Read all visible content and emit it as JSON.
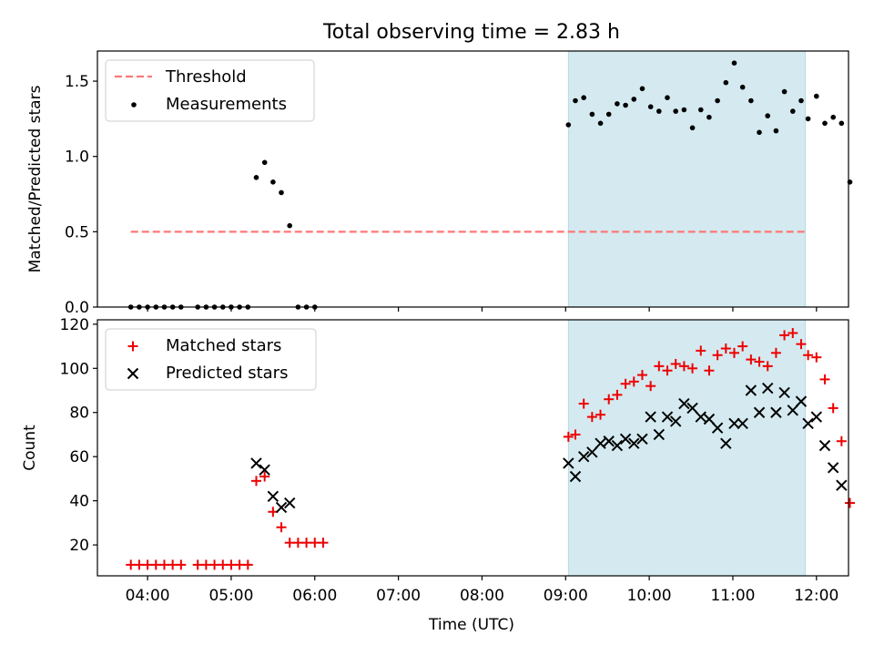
{
  "title": "Total observing time = 2.83 h",
  "colors": {
    "shade": "#d4eaf0",
    "shade_edge": "#b5d9e4",
    "threshold": "#ff7777",
    "measurements": "#000000",
    "matched": "#ee0000",
    "predicted": "#000000"
  },
  "chart_data": [
    {
      "type": "scatter",
      "ylabel": "Matched/Predicted stars",
      "ylim": [
        0,
        1.7
      ],
      "yticks": [
        0.0,
        0.5,
        1.0,
        1.5
      ],
      "ytick_labels": [
        "0.0",
        "0.5",
        "1.0",
        "1.5"
      ],
      "legend": "top-left",
      "shaded_span": [
        "09:02",
        "11:52"
      ],
      "threshold": {
        "name": "Threshold",
        "value": 0.5,
        "x_range": [
          "03:48",
          "11:52"
        ]
      },
      "series": [
        {
          "name": "Measurements",
          "points": [
            [
              "03:48",
              0
            ],
            [
              "03:54",
              0
            ],
            [
              "04:00",
              0
            ],
            [
              "04:06",
              0
            ],
            [
              "04:12",
              0
            ],
            [
              "04:18",
              0
            ],
            [
              "04:24",
              0
            ],
            [
              "04:36",
              0
            ],
            [
              "04:42",
              0
            ],
            [
              "04:48",
              0
            ],
            [
              "04:54",
              0
            ],
            [
              "05:00",
              0
            ],
            [
              "05:06",
              0
            ],
            [
              "05:12",
              0
            ],
            [
              "05:18",
              0.86
            ],
            [
              "05:24",
              0.96
            ],
            [
              "05:30",
              0.83
            ],
            [
              "05:36",
              0.76
            ],
            [
              "05:42",
              0.54
            ],
            [
              "05:48",
              0
            ],
            [
              "05:54",
              0
            ],
            [
              "06:00",
              0
            ],
            [
              "09:02",
              1.21
            ],
            [
              "09:07",
              1.37
            ],
            [
              "09:13",
              1.39
            ],
            [
              "09:19",
              1.28
            ],
            [
              "09:25",
              1.22
            ],
            [
              "09:31",
              1.28
            ],
            [
              "09:37",
              1.35
            ],
            [
              "09:43",
              1.34
            ],
            [
              "09:49",
              1.38
            ],
            [
              "09:55",
              1.45
            ],
            [
              "10:01",
              1.33
            ],
            [
              "10:07",
              1.3
            ],
            [
              "10:13",
              1.39
            ],
            [
              "10:19",
              1.3
            ],
            [
              "10:25",
              1.31
            ],
            [
              "10:31",
              1.19
            ],
            [
              "10:37",
              1.31
            ],
            [
              "10:43",
              1.26
            ],
            [
              "10:49",
              1.37
            ],
            [
              "10:55",
              1.49
            ],
            [
              "11:01",
              1.62
            ],
            [
              "11:07",
              1.46
            ],
            [
              "11:13",
              1.37
            ],
            [
              "11:19",
              1.16
            ],
            [
              "11:25",
              1.27
            ],
            [
              "11:31",
              1.17
            ],
            [
              "11:37",
              1.43
            ],
            [
              "11:43",
              1.3
            ],
            [
              "11:49",
              1.37
            ],
            [
              "11:54",
              1.25
            ],
            [
              "12:00",
              1.4
            ],
            [
              "12:06",
              1.22
            ],
            [
              "12:12",
              1.26
            ],
            [
              "12:18",
              1.22
            ],
            [
              "12:24",
              0.83
            ]
          ]
        }
      ]
    },
    {
      "type": "scatter",
      "xlabel": "Time (UTC)",
      "ylabel": "Count",
      "ylim": [
        6,
        122
      ],
      "yticks": [
        20,
        40,
        60,
        80,
        100,
        120
      ],
      "ytick_labels": [
        "20",
        "40",
        "60",
        "80",
        "100",
        "120"
      ],
      "xlim": [
        "03:24",
        "12:23"
      ],
      "xticks": [
        "04:00",
        "05:00",
        "06:00",
        "07:00",
        "08:00",
        "09:00",
        "10:00",
        "11:00",
        "12:00"
      ],
      "legend": "top-left",
      "shaded_span": [
        "09:02",
        "11:52"
      ],
      "series": [
        {
          "name": "Matched stars",
          "marker": "plus",
          "points": [
            [
              "03:48",
              11
            ],
            [
              "03:54",
              11
            ],
            [
              "04:00",
              11
            ],
            [
              "04:06",
              11
            ],
            [
              "04:12",
              11
            ],
            [
              "04:18",
              11
            ],
            [
              "04:24",
              11
            ],
            [
              "04:36",
              11
            ],
            [
              "04:42",
              11
            ],
            [
              "04:48",
              11
            ],
            [
              "04:54",
              11
            ],
            [
              "05:00",
              11
            ],
            [
              "05:06",
              11
            ],
            [
              "05:12",
              11
            ],
            [
              "05:18",
              49
            ],
            [
              "05:24",
              51
            ],
            [
              "05:30",
              35
            ],
            [
              "05:36",
              28
            ],
            [
              "05:42",
              21
            ],
            [
              "05:48",
              21
            ],
            [
              "05:54",
              21
            ],
            [
              "06:00",
              21
            ],
            [
              "06:06",
              21
            ],
            [
              "09:02",
              69
            ],
            [
              "09:07",
              70
            ],
            [
              "09:13",
              84
            ],
            [
              "09:19",
              78
            ],
            [
              "09:25",
              79
            ],
            [
              "09:31",
              86
            ],
            [
              "09:37",
              88
            ],
            [
              "09:43",
              93
            ],
            [
              "09:49",
              94
            ],
            [
              "09:55",
              97
            ],
            [
              "10:01",
              92
            ],
            [
              "10:07",
              101
            ],
            [
              "10:13",
              99
            ],
            [
              "10:19",
              102
            ],
            [
              "10:25",
              101
            ],
            [
              "10:31",
              100
            ],
            [
              "10:37",
              108
            ],
            [
              "10:43",
              99
            ],
            [
              "10:49",
              106
            ],
            [
              "10:55",
              109
            ],
            [
              "11:01",
              107
            ],
            [
              "11:07",
              110
            ],
            [
              "11:13",
              104
            ],
            [
              "11:19",
              103
            ],
            [
              "11:25",
              101
            ],
            [
              "11:31",
              107
            ],
            [
              "11:37",
              115
            ],
            [
              "11:43",
              116
            ],
            [
              "11:49",
              111
            ],
            [
              "11:54",
              106
            ],
            [
              "12:00",
              105
            ],
            [
              "12:06",
              95
            ],
            [
              "12:12",
              82
            ],
            [
              "12:18",
              67
            ],
            [
              "12:24",
              39
            ]
          ]
        },
        {
          "name": "Predicted stars",
          "marker": "x",
          "points": [
            [
              "05:18",
              57
            ],
            [
              "05:24",
              54
            ],
            [
              "05:30",
              42
            ],
            [
              "05:36",
              37
            ],
            [
              "05:42",
              39
            ],
            [
              "09:02",
              57
            ],
            [
              "09:07",
              51
            ],
            [
              "09:13",
              60
            ],
            [
              "09:19",
              62
            ],
            [
              "09:25",
              66
            ],
            [
              "09:31",
              67
            ],
            [
              "09:37",
              65
            ],
            [
              "09:43",
              68
            ],
            [
              "09:49",
              66
            ],
            [
              "09:55",
              68
            ],
            [
              "10:01",
              78
            ],
            [
              "10:07",
              70
            ],
            [
              "10:13",
              78
            ],
            [
              "10:19",
              76
            ],
            [
              "10:25",
              84
            ],
            [
              "10:31",
              82
            ],
            [
              "10:37",
              78
            ],
            [
              "10:43",
              77
            ],
            [
              "10:49",
              73
            ],
            [
              "10:55",
              66
            ],
            [
              "11:01",
              75
            ],
            [
              "11:07",
              75
            ],
            [
              "11:13",
              90
            ],
            [
              "11:19",
              80
            ],
            [
              "11:25",
              91
            ],
            [
              "11:31",
              80
            ],
            [
              "11:37",
              89
            ],
            [
              "11:43",
              81
            ],
            [
              "11:49",
              85
            ],
            [
              "11:54",
              75
            ],
            [
              "12:00",
              78
            ],
            [
              "12:06",
              65
            ],
            [
              "12:12",
              55
            ],
            [
              "12:18",
              47
            ]
          ]
        }
      ]
    }
  ]
}
